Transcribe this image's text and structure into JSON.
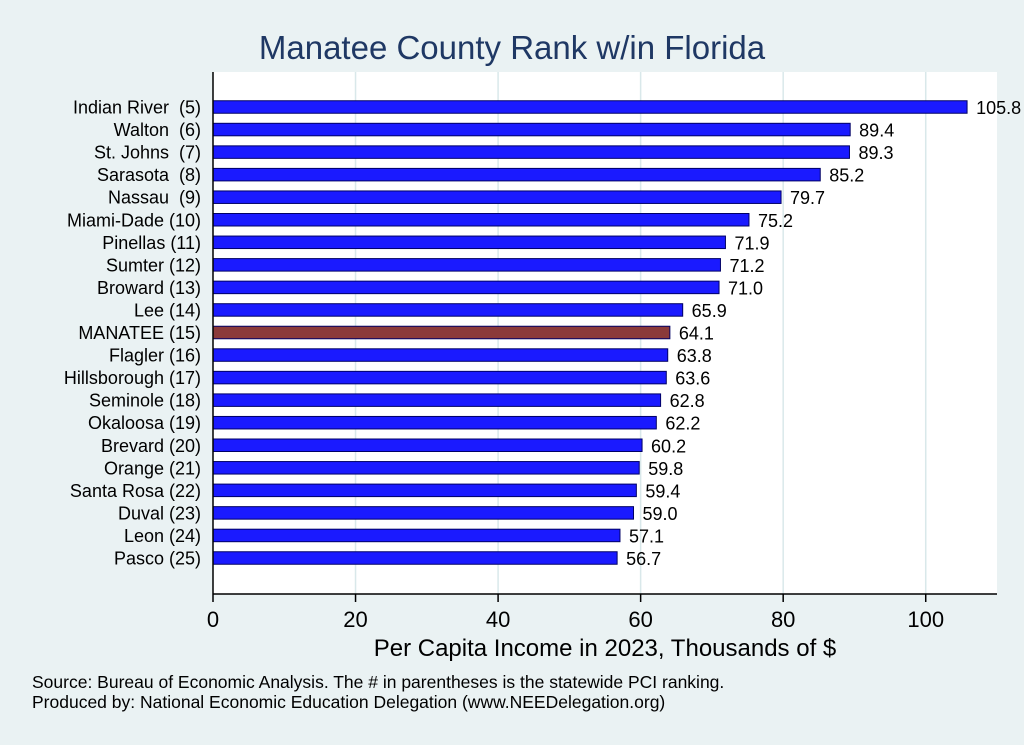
{
  "chart_data": {
    "type": "bar",
    "orientation": "horizontal",
    "title": "Manatee County Rank w/in Florida",
    "xlabel": "Per Capita Income in 2023, Thousands of $",
    "ylabel": "",
    "xlim": [
      0,
      110
    ],
    "xticks": [
      0,
      20,
      40,
      60,
      80,
      100
    ],
    "grid": true,
    "categories": [
      "Indian River  (5)",
      "Walton  (6)",
      "St. Johns  (7)",
      "Sarasota  (8)",
      "Nassau  (9)",
      "Miami-Dade (10)",
      "Pinellas (11)",
      "Sumter (12)",
      "Broward (13)",
      "Lee (14)",
      "MANATEE (15)",
      "Flagler (16)",
      "Hillsborough (17)",
      "Seminole (18)",
      "Okaloosa (19)",
      "Brevard (20)",
      "Orange (21)",
      "Santa Rosa (22)",
      "Duval (23)",
      "Leon (24)",
      "Pasco (25)"
    ],
    "values": [
      105.8,
      89.4,
      89.3,
      85.2,
      79.7,
      75.2,
      71.9,
      71.2,
      71.0,
      65.9,
      64.1,
      63.8,
      63.6,
      62.8,
      62.2,
      60.2,
      59.8,
      59.4,
      59.0,
      57.1,
      56.7
    ],
    "value_labels": [
      "105.8",
      "89.4",
      "89.3",
      "85.2",
      "79.7",
      "75.2",
      "71.9",
      "71.2",
      "71.0",
      "65.9",
      "64.1",
      "63.8",
      "63.6",
      "62.8",
      "62.2",
      "60.2",
      "59.8",
      "59.4",
      "59.0",
      "57.1",
      "56.7"
    ],
    "highlight_index": 10,
    "colors": {
      "bar": "#1a1aff",
      "highlight": "#8b3a3a",
      "bar_edge": "#000066",
      "grid": "#d9e8ea",
      "plot_bg": "#ffffff",
      "title": "#1f3864"
    }
  },
  "footer": {
    "source": "Source: Bureau of Economic Analysis. The # in parentheses is the statewide PCI ranking.",
    "produced": "Produced by: National Economic Education Delegation (www.NEEDelegation.org)"
  }
}
